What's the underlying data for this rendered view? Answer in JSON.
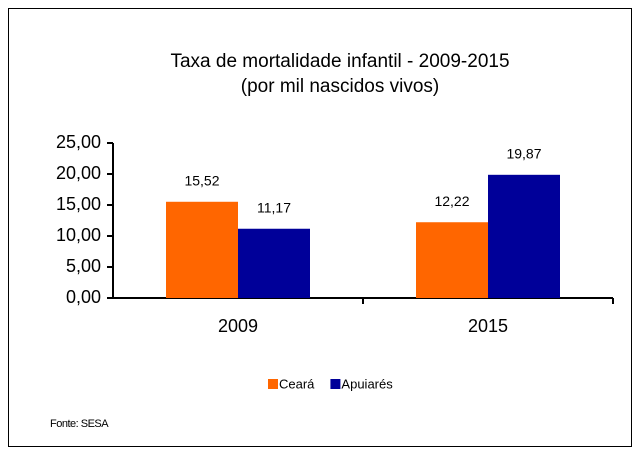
{
  "chart_data": {
    "type": "bar",
    "title": "Taxa de mortalidade infantil - 2009-2015",
    "subtitle": "(por mil nascidos vivos)",
    "categories": [
      "2009",
      "2015"
    ],
    "series": [
      {
        "name": "Ceará",
        "color": "#ff6600",
        "values": [
          15.52,
          12.22
        ],
        "value_labels": [
          "15,52",
          "12,22"
        ]
      },
      {
        "name": "Apuiarés",
        "color": "#000099",
        "values": [
          11.17,
          19.87
        ],
        "value_labels": [
          "11,17",
          "19,87"
        ]
      }
    ],
    "ylim": [
      0,
      25
    ],
    "yticks": [
      {
        "value": 0,
        "label": "0,00"
      },
      {
        "value": 5,
        "label": "5,00"
      },
      {
        "value": 10,
        "label": "10,00"
      },
      {
        "value": 15,
        "label": "15,00"
      },
      {
        "value": 20,
        "label": "20,00"
      },
      {
        "value": 25,
        "label": "25,00"
      }
    ],
    "legend": "bottom",
    "source": "Fonte: SESA"
  }
}
